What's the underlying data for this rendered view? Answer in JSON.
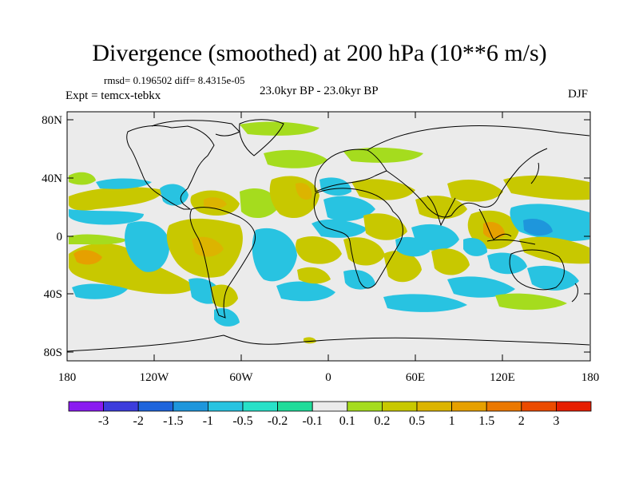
{
  "header": {
    "title": "Divergence (smoothed) at 200 hPa (10**6 m/s)",
    "stats": "rmsd= 0.196502 diff= 8.4315e-05",
    "experiment": "Expt = temcx-tebkx",
    "period": "23.0kyr BP - 23.0kyr BP",
    "season": "DJF"
  },
  "map": {
    "y_ticks": [
      "80N",
      "40N",
      "0",
      "40S",
      "80S"
    ],
    "x_ticks": [
      "180",
      "120W",
      "60W",
      "0",
      "60E",
      "120E",
      "180"
    ]
  },
  "colorbar": {
    "colors": [
      "#8a1bf0",
      "#3c3cdc",
      "#1e64dc",
      "#1e96dc",
      "#28c3e1",
      "#28e1c8",
      "#20dc9a",
      "#ebebeb",
      "#a5dc1e",
      "#c8c800",
      "#dcb400",
      "#e6a000",
      "#eb7800",
      "#eb4b00",
      "#e61e00"
    ],
    "labels": [
      "-3",
      "-2",
      "-1.5",
      "-1",
      "-0.5",
      "-0.2",
      "-0.1",
      "0.1",
      "0.2",
      "0.5",
      "1",
      "1.5",
      "2",
      "3"
    ]
  }
}
